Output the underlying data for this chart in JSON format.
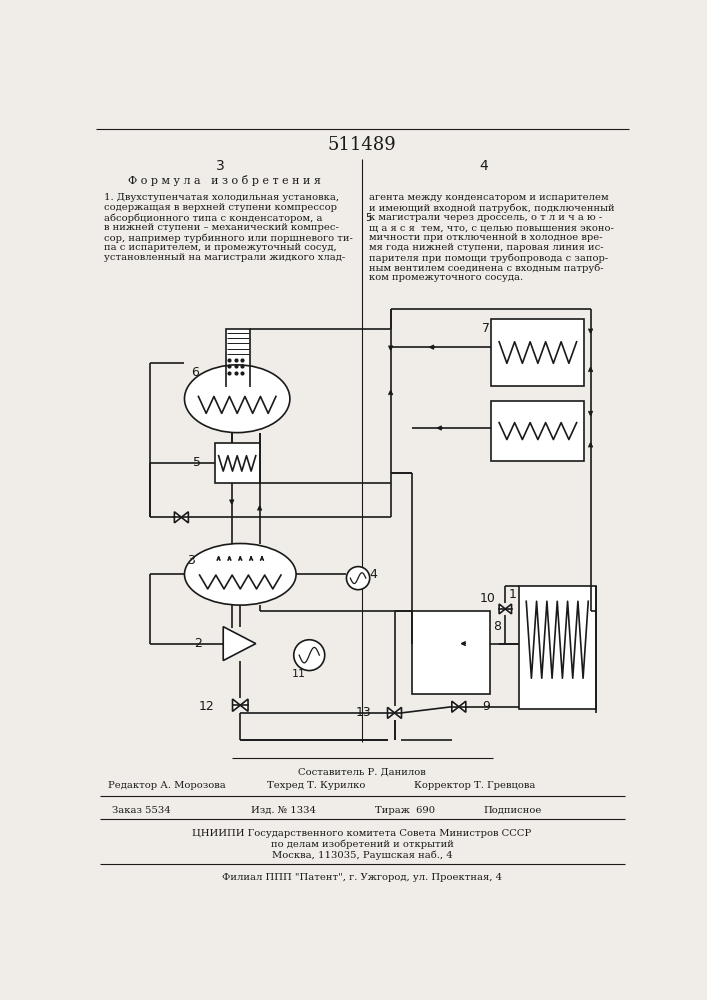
{
  "title": "511489",
  "page_numbers": [
    "3",
    "4"
  ],
  "formula_title": "Ф о р м у л а   и з о б р е т е н и я",
  "composer": "Составитель Р. Данилов",
  "editor": "Редактор А. Морозова",
  "techred": "Техред Т. Курилко",
  "corrector": "Корректор Т. Гревцова",
  "order": "Заказ 5534",
  "edition": "Изд. № 1̵̵3̵̵4",
  "circulation": "Тираж  690",
  "subscription": "Подписное",
  "institute": "ЦНИИПИ Государственного комитета Совета Министров СССР",
  "institute2": "по делам изобретений и открытий",
  "address": "Москва, 113035, Раушская наб., 4",
  "filial": "Филиал ППП \"Патент\", г. Ужгород, ул. Проектная, 4",
  "bg_color": "#f0ede8",
  "line_color": "#1a1a1a"
}
